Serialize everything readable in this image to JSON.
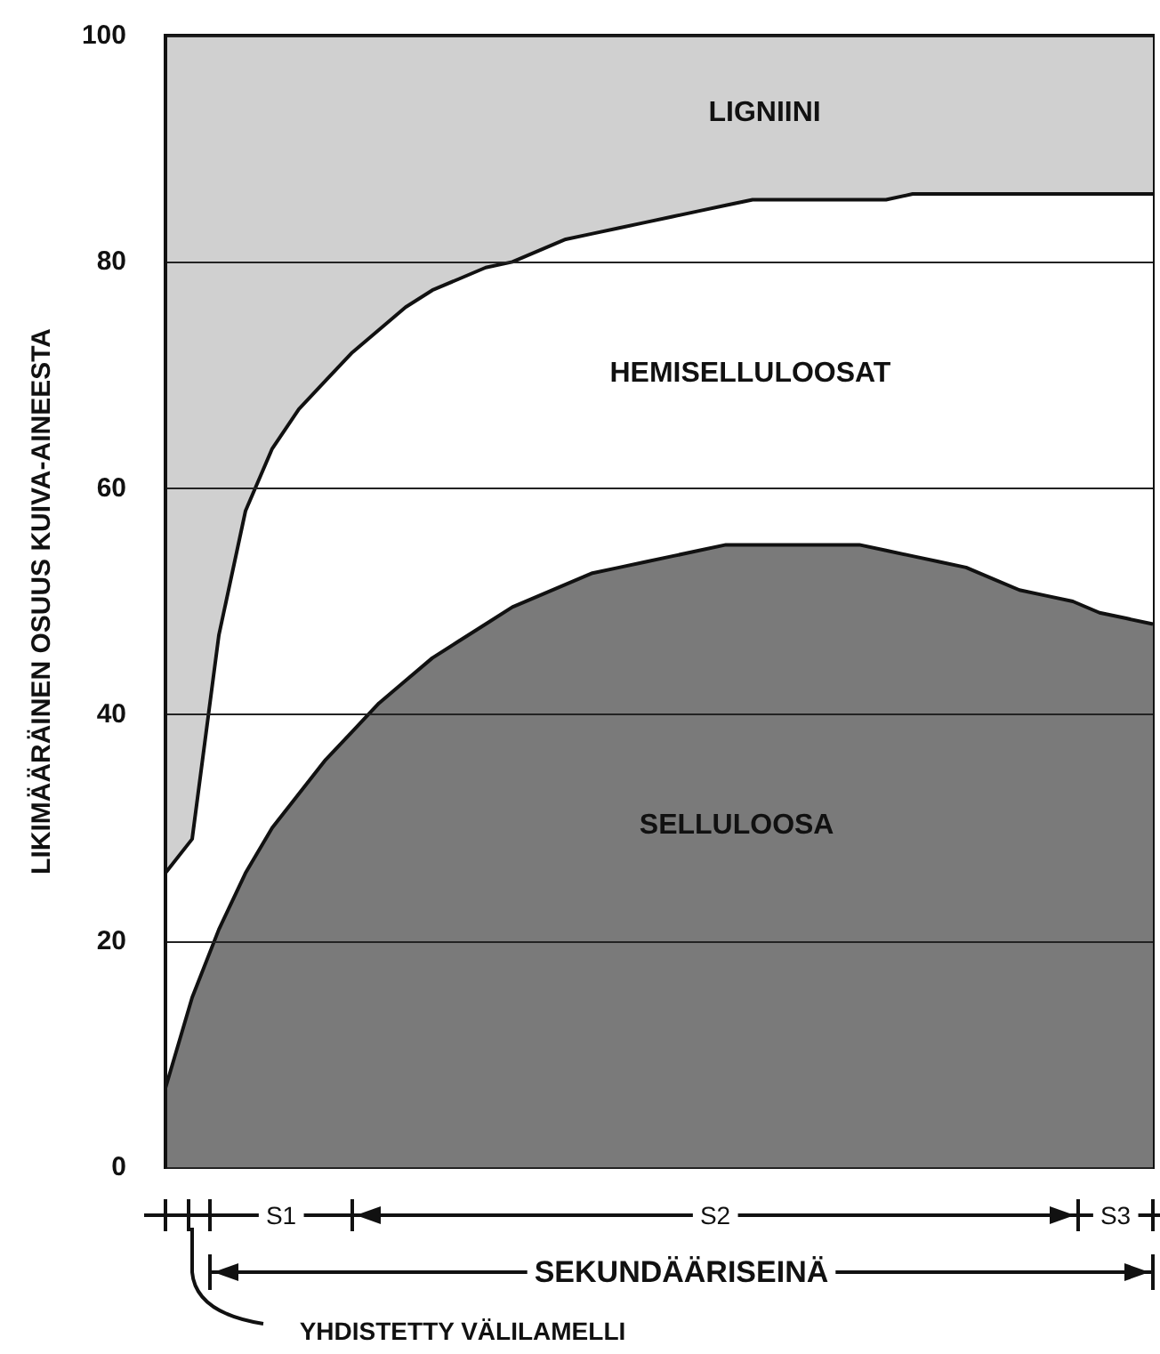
{
  "chart_data": {
    "type": "area",
    "stacked": true,
    "ylabel": "LIKIMÄÄRÄINEN OSUUS KUIVA-AINEESTA",
    "categories": [
      null,
      null,
      null,
      null,
      null,
      null,
      null,
      null,
      null,
      null,
      null,
      null,
      null,
      null,
      null,
      null,
      null,
      null,
      null,
      null,
      null,
      null,
      null,
      null,
      null,
      null,
      null,
      null,
      null,
      null,
      null,
      null,
      null,
      null,
      null,
      null,
      null,
      null
    ],
    "series": [
      {
        "name": "SELLULOOSA",
        "color": "#7a7a7a",
        "values": [
          7,
          15,
          21,
          26,
          30,
          33,
          36,
          38.5,
          41,
          43,
          45,
          46.5,
          48,
          49.5,
          50.5,
          51.5,
          52.5,
          53,
          53.5,
          54,
          54.5,
          55,
          55,
          55,
          55,
          55,
          55,
          54.5,
          54,
          53.5,
          53,
          52,
          51,
          50.5,
          50,
          49,
          48.5,
          48
        ]
      },
      {
        "name": "HEMISELLULOOSAT",
        "color": "#ffffff",
        "values": [
          19,
          14,
          26,
          32,
          33.5,
          34,
          33.5,
          33.5,
          33,
          33,
          32.5,
          32,
          31.5,
          30.5,
          30.5,
          30.5,
          30,
          30,
          30,
          30,
          30,
          30,
          30.5,
          30.5,
          30.5,
          30.5,
          30.5,
          31,
          32,
          32.5,
          33,
          34,
          35,
          35.5,
          36,
          37,
          37.5,
          38
        ]
      },
      {
        "name": "LIGNIINI",
        "color": "#d0d0d0",
        "values": [
          74,
          71,
          53,
          42,
          36.5,
          33,
          30.5,
          28,
          26,
          24,
          22.5,
          21.5,
          20.5,
          20,
          19,
          18,
          17.5,
          17,
          16.5,
          16,
          15.5,
          15,
          14.5,
          14.5,
          14.5,
          14.5,
          14.5,
          14.5,
          14,
          14,
          14,
          14,
          14,
          14,
          14,
          14,
          14,
          14
        ]
      }
    ],
    "ylim": [
      0,
      100
    ],
    "yticks": [
      0,
      20,
      40,
      60,
      80,
      100
    ],
    "grid": "y",
    "legend": false,
    "annotations": [
      "S1",
      "S2",
      "S3",
      "SEKUNDÄÄRISEINÄ",
      "YHDISTETTY VÄLILAMELLI"
    ]
  }
}
